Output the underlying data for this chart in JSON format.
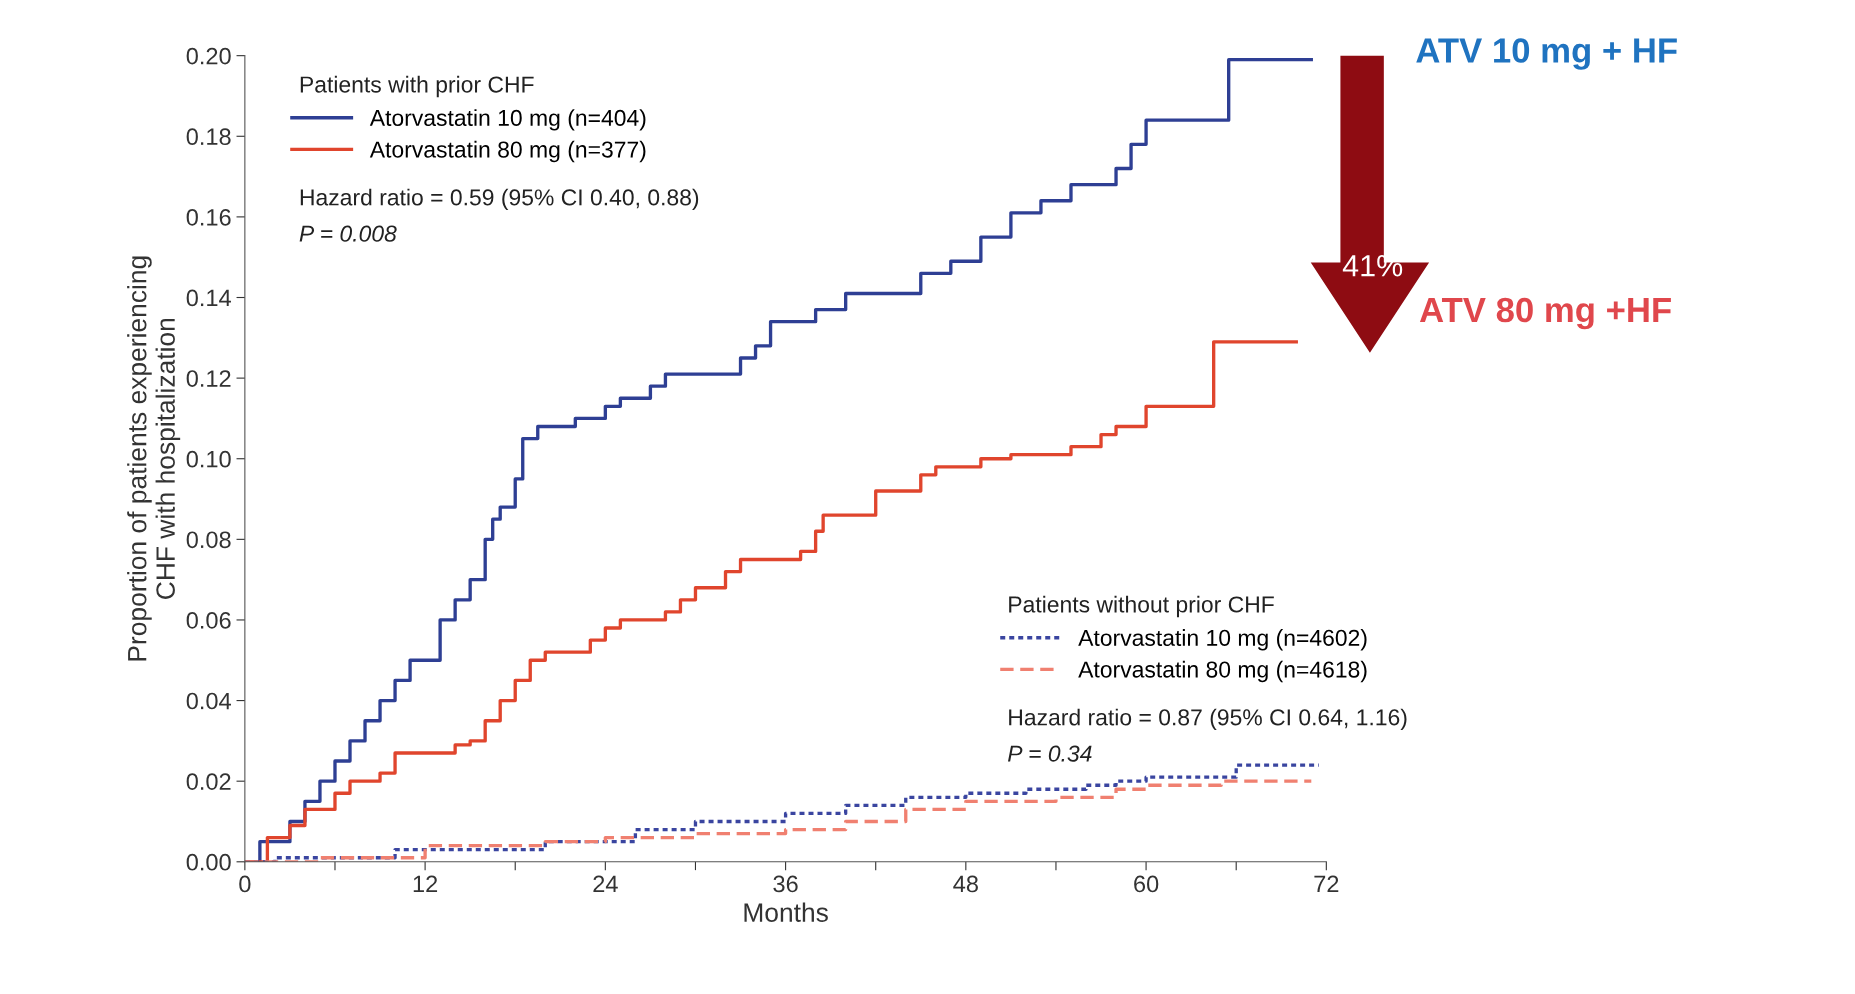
{
  "chart_data": {
    "type": "step",
    "xlabel": "Months",
    "ylabel": "Proportion of patients experiencing\nCHF with hospitalization",
    "xlim": [
      0,
      72
    ],
    "ylim": [
      0,
      0.2
    ],
    "xticks": [
      0,
      {
        "value": 6,
        "label": null
      },
      12,
      {
        "value": 18,
        "label": null
      },
      24,
      {
        "value": 30,
        "label": null
      },
      36,
      {
        "value": 42,
        "label": null
      },
      48,
      {
        "value": 54,
        "label": null
      },
      60,
      {
        "value": 66,
        "label": null
      },
      72
    ],
    "yticks": [
      {
        "value": 0,
        "label": "0.00"
      },
      {
        "value": 0.02,
        "label": "0.02"
      },
      {
        "value": 0.04,
        "label": "0.04"
      },
      {
        "value": 0.06,
        "label": "0.06"
      },
      {
        "value": 0.08,
        "label": "0.08"
      },
      {
        "value": 0.1,
        "label": "0.10"
      },
      {
        "value": 0.12,
        "label": "0.12"
      },
      {
        "value": 0.14,
        "label": "0.14"
      },
      {
        "value": 0.16,
        "label": "0.16"
      },
      {
        "value": 0.18,
        "label": "0.18"
      },
      {
        "value": 0.2,
        "label": "0.20"
      }
    ],
    "grid": false,
    "legend": "top left",
    "marker": "none",
    "series": [
      {
        "name": "Atorvastatin 10 mg (n=404)",
        "color": "#2e3f94",
        "line_style": "solid",
        "x": [
          0,
          1,
          2,
          3,
          4,
          5,
          6,
          7,
          8,
          9,
          10,
          11,
          12,
          13,
          14,
          15,
          16,
          16.5,
          17,
          18,
          18.5,
          19.5,
          21,
          22,
          24,
          25,
          27,
          28,
          31,
          33,
          34,
          35,
          38,
          40,
          43,
          45,
          47,
          49,
          51,
          53,
          55,
          58,
          59,
          60,
          65,
          65.5,
          71
        ],
        "values": [
          0,
          0.005,
          0.005,
          0.01,
          0.015,
          0.02,
          0.025,
          0.03,
          0.035,
          0.04,
          0.045,
          0.05,
          0.05,
          0.06,
          0.065,
          0.07,
          0.08,
          0.085,
          0.088,
          0.095,
          0.105,
          0.108,
          0.108,
          0.11,
          0.113,
          0.115,
          0.118,
          0.121,
          0.121,
          0.125,
          0.128,
          0.134,
          0.137,
          0.141,
          0.141,
          0.146,
          0.149,
          0.155,
          0.161,
          0.164,
          0.168,
          0.172,
          0.178,
          0.184,
          0.184,
          0.199,
          0.199
        ]
      },
      {
        "name": "Atorvastatin 80 mg (n=377)",
        "color": "#e0452d",
        "line_style": "solid",
        "x": [
          0,
          1.5,
          3,
          4,
          6,
          7,
          9,
          10,
          14,
          15,
          16,
          17,
          18,
          19,
          20,
          23,
          24,
          25,
          28,
          29,
          30,
          32,
          33,
          37,
          38,
          38.5,
          41,
          42,
          44,
          45,
          46,
          49,
          51,
          55,
          57,
          58,
          60,
          64,
          64.5,
          70
        ],
        "values": [
          0,
          0.006,
          0.009,
          0.013,
          0.017,
          0.02,
          0.022,
          0.027,
          0.029,
          0.03,
          0.035,
          0.04,
          0.045,
          0.05,
          0.052,
          0.055,
          0.058,
          0.06,
          0.062,
          0.065,
          0.068,
          0.072,
          0.075,
          0.077,
          0.082,
          0.086,
          0.086,
          0.092,
          0.092,
          0.096,
          0.098,
          0.1,
          0.101,
          0.103,
          0.106,
          0.108,
          0.113,
          0.113,
          0.129,
          0.129
        ]
      },
      {
        "name": "Atorvastatin 10 mg (n=4602)",
        "color": "#3a45a0",
        "line_style": "dotted",
        "x": [
          0,
          2,
          10,
          20,
          26,
          30,
          36,
          40,
          44,
          48,
          52,
          56,
          58,
          60,
          65,
          66,
          71.5
        ],
        "values": [
          0,
          0.001,
          0.003,
          0.005,
          0.008,
          0.01,
          0.012,
          0.014,
          0.016,
          0.017,
          0.018,
          0.019,
          0.02,
          0.021,
          0.021,
          0.024,
          0.024
        ]
      },
      {
        "name": "Atorvastatin 80 mg (n=4618)",
        "color": "#f08070",
        "line_style": "dashed",
        "x": [
          0,
          5,
          12,
          20,
          24,
          30,
          36,
          40,
          44,
          48,
          54,
          58,
          60,
          65,
          71
        ],
        "values": [
          0,
          0.001,
          0.004,
          0.005,
          0.006,
          0.007,
          0.008,
          0.01,
          0.013,
          0.015,
          0.016,
          0.018,
          0.019,
          0.02,
          0.02
        ]
      }
    ],
    "annotations": [
      "Patients with prior CHF",
      "Hazard ratio = 0.59 (95% CI 0.40, 0.88)",
      "P = 0.008",
      "Patients without prior CHF",
      "Hazard ratio = 0.87 (95% CI 0.64, 1.16)",
      "P = 0.34",
      "ATV 10 mg + HF",
      "ATV 80 mg +HF",
      "41%"
    ]
  }
}
